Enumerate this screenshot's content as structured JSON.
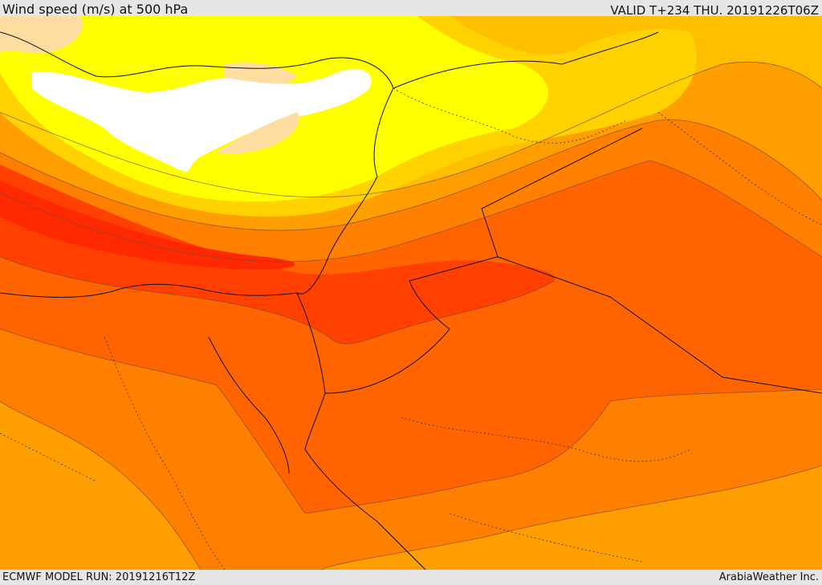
{
  "header": {
    "title": "Wind speed (m/s) at 500 hPa",
    "valid": "VALID T+234 THU. 20191226T06Z"
  },
  "footer": {
    "model_run": "ECMWF MODEL RUN: 20191216T12Z",
    "credit": "ArabiaWeather Inc."
  },
  "map": {
    "colors": {
      "white": "#ffffff",
      "peach": "#ffdca0",
      "yellow": "#ffff00",
      "light_orange": "#ffd200",
      "gold": "#ffbe00",
      "orange": "#ff9e00",
      "dark_orange": "#ff8000",
      "red_orange": "#ff6400",
      "red": "#ff4000",
      "deep_red": "#ff2800"
    }
  }
}
